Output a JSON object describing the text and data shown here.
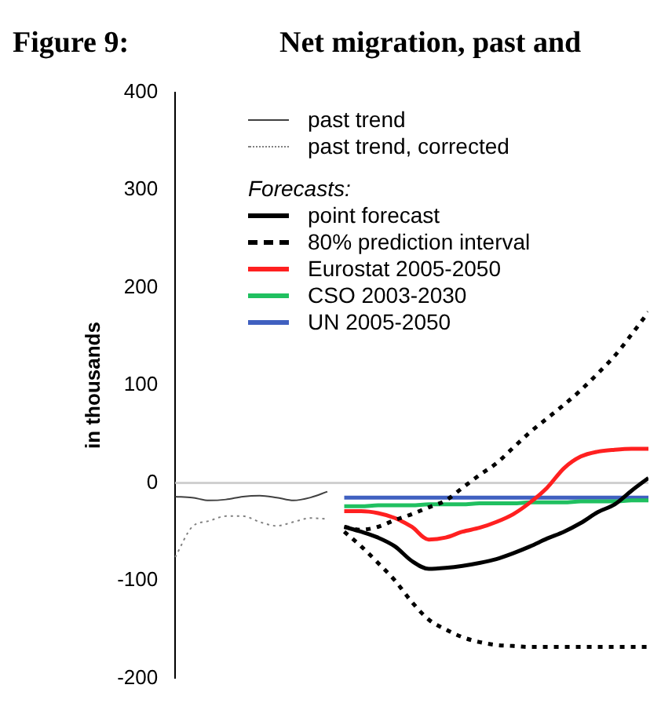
{
  "chart_data": {
    "type": "line",
    "title": "Net migration, past and",
    "annotations": [
      "Figure 9:"
    ],
    "ylabel": "in thousands",
    "legend_title": "Forecasts:",
    "categories": [
      null,
      null,
      null,
      null,
      null,
      null,
      null,
      null,
      null,
      null,
      null,
      null,
      null,
      null,
      null,
      null,
      null,
      null,
      null,
      null,
      null,
      null,
      null,
      null,
      null,
      null,
      null,
      null,
      null
    ],
    "series": [
      {
        "name": "past trend",
        "color": "#404040",
        "line_style": "solid",
        "values": [
          -14,
          -15,
          -18,
          -17,
          -14,
          -13,
          -15,
          -18,
          -15,
          -9,
          null,
          null,
          null,
          null,
          null,
          null,
          null,
          null,
          null,
          null,
          null,
          null,
          null,
          null,
          null,
          null,
          null,
          null,
          null
        ]
      },
      {
        "name": "past trend, corrected",
        "color": "#808080",
        "line_style": "dotted",
        "values": [
          -76,
          -45,
          -39,
          -34,
          -34,
          -40,
          -44,
          -40,
          -36,
          -37,
          null,
          null,
          null,
          null,
          null,
          null,
          null,
          null,
          null,
          null,
          null,
          null,
          null,
          null,
          null,
          null,
          null,
          null,
          null
        ]
      },
      {
        "name": "point forecast",
        "color": "#000000",
        "line_style": "solid",
        "values": [
          null,
          null,
          null,
          null,
          null,
          null,
          null,
          null,
          null,
          null,
          -45,
          -50,
          -56,
          -65,
          -80,
          -88,
          -87,
          -85,
          -82,
          -78,
          -72,
          -65,
          -57,
          -50,
          -41,
          -30,
          -22,
          -8,
          5
        ]
      },
      {
        "name": "80% prediction interval",
        "color": "#000000",
        "line_style": "dashed",
        "values": [
          null,
          null,
          null,
          null,
          null,
          null,
          null,
          null,
          null,
          null,
          -45,
          -48,
          -45,
          -38,
          -32,
          -25,
          -18,
          -5,
          8,
          20,
          36,
          52,
          66,
          80,
          95,
          112,
          130,
          152,
          175
        ]
      },
      {
        "color": "#000000",
        "line_style": "dashed",
        "values": [
          null,
          null,
          null,
          null,
          null,
          null,
          null,
          null,
          null,
          null,
          -50,
          -65,
          -82,
          -100,
          -122,
          -140,
          -150,
          -158,
          -163,
          -166,
          -167,
          -168,
          -168,
          -168,
          -168,
          -168,
          -168,
          -168,
          -168
        ]
      },
      {
        "name": "Eurostat 2005-2050",
        "color": "#ff2020",
        "line_style": "solid",
        "values": [
          null,
          null,
          null,
          null,
          null,
          null,
          null,
          null,
          null,
          null,
          -29,
          -29,
          -31,
          -36,
          -45,
          -58,
          -56,
          -50,
          -46,
          -40,
          -32,
          -20,
          -5,
          15,
          27,
          32,
          34,
          35,
          35
        ]
      },
      {
        "name": "CSO 2003-2030",
        "color": "#20c060",
        "line_style": "solid",
        "values": [
          null,
          null,
          null,
          null,
          null,
          null,
          null,
          null,
          null,
          null,
          -24,
          -24,
          -23,
          -23,
          -23,
          -22,
          -22,
          -22,
          -21,
          -21,
          -21,
          -20,
          -20,
          -20,
          -19,
          -19,
          -19,
          -18,
          -18
        ]
      },
      {
        "name": "UN 2005-2050",
        "color": "#4060c0",
        "line_style": "solid",
        "values": [
          null,
          null,
          null,
          null,
          null,
          null,
          null,
          null,
          null,
          null,
          -15,
          -15,
          -15,
          -15,
          -15,
          -15,
          -15,
          -15,
          -15,
          -15,
          -15,
          -15,
          -15,
          -15,
          -15,
          -15,
          -15,
          -15,
          -15
        ]
      }
    ],
    "ylim": [
      -200,
      400
    ],
    "yticks": [
      -200,
      -100,
      0,
      100,
      200,
      300,
      400
    ],
    "tick_labels": "y",
    "grid": false,
    "legend": "top left",
    "marker": "none",
    "ref_lines": [
      {
        "axis": "y",
        "value": 0,
        "color": "#d0d0d0"
      }
    ]
  }
}
